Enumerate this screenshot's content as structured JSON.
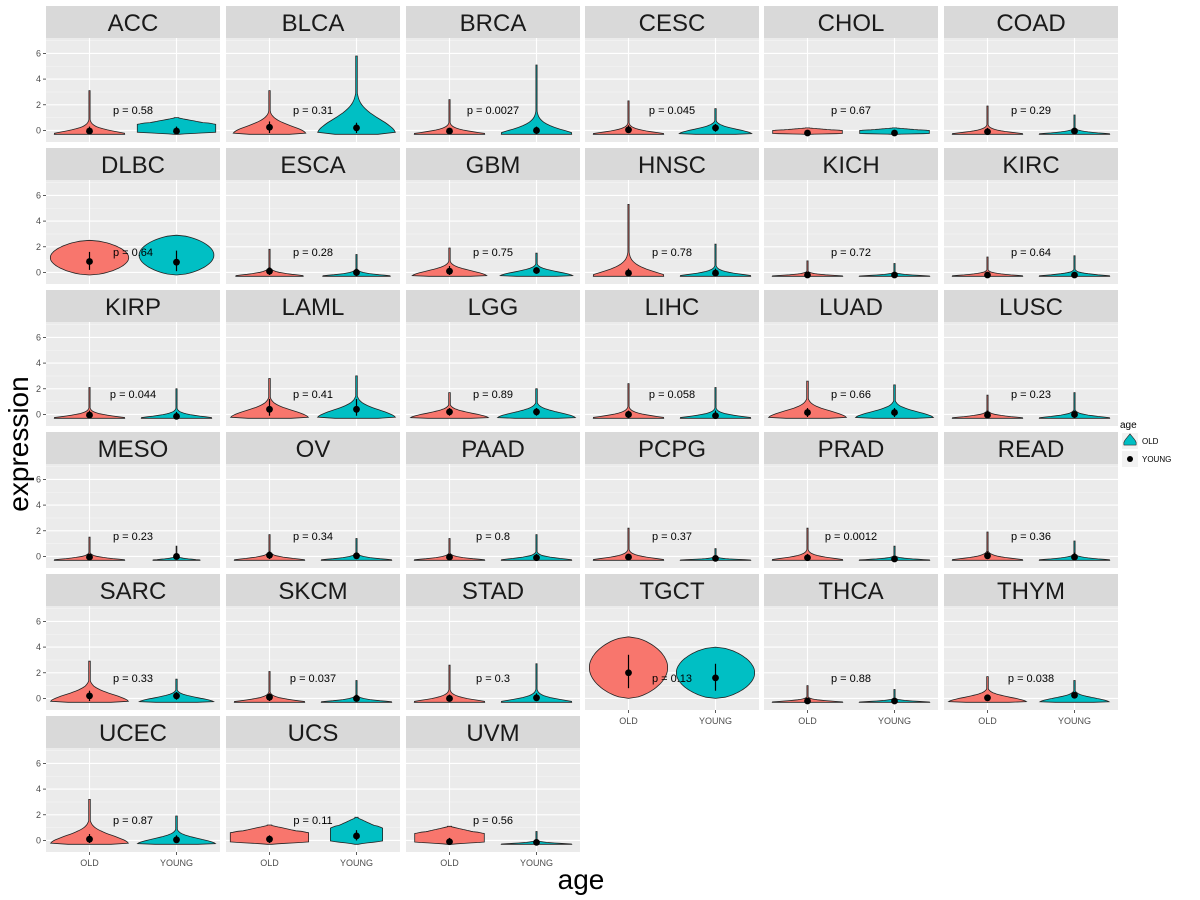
{
  "chart_data": {
    "type": "violin",
    "title": "",
    "xlabel": "age",
    "ylabel": "expression",
    "categories": [
      "OLD",
      "YOUNG"
    ],
    "ylim": [
      -0.9,
      7.2
    ],
    "yticks": [
      0,
      2,
      4,
      6
    ],
    "legend": {
      "title": "age",
      "position": "right",
      "entries": [
        {
          "name": "OLD",
          "color": "#F8766D"
        },
        {
          "name": "YOUNG",
          "color": "#00BFC4"
        }
      ]
    },
    "panels": [
      {
        "name": "ACC",
        "p": "p = 0.58",
        "old": {
          "min": -0.3,
          "max": 3.1,
          "mean": -0.05,
          "lo": -0.3,
          "hi": 0.3,
          "width": 0.45,
          "shape": "peak"
        },
        "young": {
          "min": -0.3,
          "max": 1.0,
          "mean": -0.05,
          "lo": -0.3,
          "hi": 0.3,
          "width": 0.45,
          "shape": "flat"
        }
      },
      {
        "name": "BLCA",
        "p": "p = 0.31",
        "old": {
          "min": -0.3,
          "max": 3.1,
          "mean": 0.25,
          "lo": -0.2,
          "hi": 0.7,
          "width": 0.42,
          "shape": "spread"
        },
        "young": {
          "min": -0.3,
          "max": 5.8,
          "mean": 0.2,
          "lo": -0.2,
          "hi": 0.6,
          "width": 0.45,
          "shape": "spread"
        }
      },
      {
        "name": "BRCA",
        "p": "p = 0.0027",
        "old": {
          "min": -0.3,
          "max": 2.4,
          "mean": -0.05,
          "lo": -0.3,
          "hi": 0.2,
          "width": 0.45,
          "shape": "peak"
        },
        "young": {
          "min": -0.3,
          "max": 5.1,
          "mean": 0.0,
          "lo": -0.3,
          "hi": 0.3,
          "width": 0.45,
          "shape": "peak"
        }
      },
      {
        "name": "CESC",
        "p": "p = 0.045",
        "old": {
          "min": -0.3,
          "max": 2.3,
          "mean": 0.05,
          "lo": -0.2,
          "hi": 0.4,
          "width": 0.45,
          "shape": "peak"
        },
        "young": {
          "min": -0.3,
          "max": 1.7,
          "mean": 0.2,
          "lo": -0.1,
          "hi": 0.5,
          "width": 0.42,
          "shape": "spread"
        }
      },
      {
        "name": "CHOL",
        "p": "p = 0.67",
        "old": {
          "min": -0.3,
          "max": 0.2,
          "mean": -0.2,
          "lo": -0.3,
          "hi": -0.1,
          "width": 0.4,
          "shape": "flat"
        },
        "young": {
          "min": -0.3,
          "max": 0.2,
          "mean": -0.2,
          "lo": -0.3,
          "hi": -0.1,
          "width": 0.4,
          "shape": "flat"
        }
      },
      {
        "name": "COAD",
        "p": "p = 0.29",
        "old": {
          "min": -0.3,
          "max": 1.9,
          "mean": -0.1,
          "lo": -0.3,
          "hi": 0.2,
          "width": 0.45,
          "shape": "peak"
        },
        "young": {
          "min": -0.3,
          "max": 1.2,
          "mean": -0.05,
          "lo": -0.3,
          "hi": 0.2,
          "width": 0.45,
          "shape": "peak"
        }
      },
      {
        "name": "DLBC",
        "p": "p = 0.64",
        "old": {
          "min": -0.2,
          "max": 2.5,
          "mean": 0.85,
          "lo": 0.2,
          "hi": 1.6,
          "width": 0.45,
          "shape": "broad"
        },
        "young": {
          "min": -0.2,
          "max": 2.9,
          "mean": 0.8,
          "lo": 0.1,
          "hi": 1.7,
          "width": 0.43,
          "shape": "broad"
        }
      },
      {
        "name": "ESCA",
        "p": "p = 0.28",
        "old": {
          "min": -0.3,
          "max": 1.8,
          "mean": 0.1,
          "lo": -0.2,
          "hi": 0.4,
          "width": 0.43,
          "shape": "peak"
        },
        "young": {
          "min": -0.3,
          "max": 1.4,
          "mean": 0.0,
          "lo": -0.3,
          "hi": 0.3,
          "width": 0.43,
          "shape": "peak"
        }
      },
      {
        "name": "GBM",
        "p": "p = 0.75",
        "old": {
          "min": -0.3,
          "max": 1.9,
          "mean": 0.1,
          "lo": -0.2,
          "hi": 0.5,
          "width": 0.43,
          "shape": "spread"
        },
        "young": {
          "min": -0.3,
          "max": 1.5,
          "mean": 0.15,
          "lo": -0.1,
          "hi": 0.4,
          "width": 0.42,
          "shape": "spread"
        }
      },
      {
        "name": "HNSC",
        "p": "p = 0.78",
        "old": {
          "min": -0.3,
          "max": 5.3,
          "mean": -0.05,
          "lo": -0.3,
          "hi": 0.3,
          "width": 0.45,
          "shape": "peak"
        },
        "young": {
          "min": -0.3,
          "max": 2.2,
          "mean": -0.05,
          "lo": -0.3,
          "hi": 0.3,
          "width": 0.45,
          "shape": "peak"
        }
      },
      {
        "name": "KICH",
        "p": "p = 0.72",
        "old": {
          "min": -0.3,
          "max": 0.9,
          "mean": -0.2,
          "lo": -0.3,
          "hi": 0.0,
          "width": 0.45,
          "shape": "peak"
        },
        "young": {
          "min": -0.3,
          "max": 0.7,
          "mean": -0.2,
          "lo": -0.3,
          "hi": 0.0,
          "width": 0.45,
          "shape": "peak"
        }
      },
      {
        "name": "KIRC",
        "p": "p = 0.64",
        "old": {
          "min": -0.3,
          "max": 1.2,
          "mean": -0.2,
          "lo": -0.3,
          "hi": 0.0,
          "width": 0.45,
          "shape": "peak"
        },
        "young": {
          "min": -0.3,
          "max": 1.3,
          "mean": -0.2,
          "lo": -0.3,
          "hi": 0.0,
          "width": 0.45,
          "shape": "peak"
        }
      },
      {
        "name": "KIRP",
        "p": "p = 0.044",
        "old": {
          "min": -0.3,
          "max": 2.1,
          "mean": -0.05,
          "lo": -0.3,
          "hi": 0.3,
          "width": 0.45,
          "shape": "peak"
        },
        "young": {
          "min": -0.3,
          "max": 2.0,
          "mean": -0.15,
          "lo": -0.3,
          "hi": 0.2,
          "width": 0.45,
          "shape": "peak"
        }
      },
      {
        "name": "LAML",
        "p": "p = 0.41",
        "old": {
          "min": -0.3,
          "max": 2.8,
          "mean": 0.4,
          "lo": -0.1,
          "hi": 1.2,
          "width": 0.45,
          "shape": "spread"
        },
        "young": {
          "min": -0.3,
          "max": 3.0,
          "mean": 0.4,
          "lo": -0.1,
          "hi": 1.2,
          "width": 0.45,
          "shape": "spread"
        }
      },
      {
        "name": "LGG",
        "p": "p = 0.89",
        "old": {
          "min": -0.3,
          "max": 1.7,
          "mean": 0.2,
          "lo": -0.1,
          "hi": 0.5,
          "width": 0.45,
          "shape": "spread"
        },
        "young": {
          "min": -0.3,
          "max": 2.0,
          "mean": 0.2,
          "lo": -0.1,
          "hi": 0.5,
          "width": 0.45,
          "shape": "spread"
        }
      },
      {
        "name": "LIHC",
        "p": "p = 0.058",
        "old": {
          "min": -0.3,
          "max": 2.4,
          "mean": 0.0,
          "lo": -0.3,
          "hi": 0.3,
          "width": 0.45,
          "shape": "peak"
        },
        "young": {
          "min": -0.3,
          "max": 2.1,
          "mean": -0.1,
          "lo": -0.3,
          "hi": 0.3,
          "width": 0.45,
          "shape": "peak"
        }
      },
      {
        "name": "LUAD",
        "p": "p = 0.66",
        "old": {
          "min": -0.3,
          "max": 2.6,
          "mean": 0.15,
          "lo": -0.2,
          "hi": 0.5,
          "width": 0.45,
          "shape": "spread"
        },
        "young": {
          "min": -0.3,
          "max": 2.3,
          "mean": 0.15,
          "lo": -0.2,
          "hi": 0.5,
          "width": 0.45,
          "shape": "spread"
        }
      },
      {
        "name": "LUSC",
        "p": "p = 0.23",
        "old": {
          "min": -0.3,
          "max": 1.5,
          "mean": -0.05,
          "lo": -0.3,
          "hi": 0.3,
          "width": 0.45,
          "shape": "peak"
        },
        "young": {
          "min": -0.3,
          "max": 1.7,
          "mean": 0.0,
          "lo": -0.3,
          "hi": 0.3,
          "width": 0.45,
          "shape": "peak"
        }
      },
      {
        "name": "MESO",
        "p": "p = 0.23",
        "old": {
          "min": -0.3,
          "max": 1.5,
          "mean": -0.05,
          "lo": -0.3,
          "hi": 0.2,
          "width": 0.45,
          "shape": "peak"
        },
        "young": {
          "min": -0.3,
          "max": 0.8,
          "mean": 0.0,
          "lo": -0.2,
          "hi": 0.2,
          "width": 0.3,
          "shape": "peak"
        }
      },
      {
        "name": "OV",
        "p": "p = 0.34",
        "old": {
          "min": -0.3,
          "max": 1.7,
          "mean": 0.1,
          "lo": -0.2,
          "hi": 0.4,
          "width": 0.45,
          "shape": "peak"
        },
        "young": {
          "min": -0.3,
          "max": 1.4,
          "mean": 0.05,
          "lo": -0.2,
          "hi": 0.3,
          "width": 0.45,
          "shape": "peak"
        }
      },
      {
        "name": "PAAD",
        "p": "p = 0.8",
        "old": {
          "min": -0.3,
          "max": 1.4,
          "mean": -0.05,
          "lo": -0.3,
          "hi": 0.2,
          "width": 0.45,
          "shape": "peak"
        },
        "young": {
          "min": -0.3,
          "max": 1.7,
          "mean": -0.1,
          "lo": -0.3,
          "hi": 0.2,
          "width": 0.45,
          "shape": "peak"
        }
      },
      {
        "name": "PCPG",
        "p": "p = 0.37",
        "old": {
          "min": -0.3,
          "max": 2.2,
          "mean": -0.05,
          "lo": -0.3,
          "hi": 0.2,
          "width": 0.45,
          "shape": "peak"
        },
        "young": {
          "min": -0.3,
          "max": 0.6,
          "mean": -0.15,
          "lo": -0.3,
          "hi": 0.0,
          "width": 0.45,
          "shape": "peak"
        }
      },
      {
        "name": "PRAD",
        "p": "p = 0.0012",
        "old": {
          "min": -0.3,
          "max": 2.2,
          "mean": -0.1,
          "lo": -0.3,
          "hi": 0.2,
          "width": 0.45,
          "shape": "peak"
        },
        "young": {
          "min": -0.3,
          "max": 0.8,
          "mean": -0.2,
          "lo": -0.3,
          "hi": 0.0,
          "width": 0.45,
          "shape": "peak"
        }
      },
      {
        "name": "READ",
        "p": "p = 0.36",
        "old": {
          "min": -0.3,
          "max": 1.9,
          "mean": 0.05,
          "lo": -0.2,
          "hi": 0.4,
          "width": 0.45,
          "shape": "peak"
        },
        "young": {
          "min": -0.3,
          "max": 1.2,
          "mean": -0.05,
          "lo": -0.2,
          "hi": 0.3,
          "width": 0.45,
          "shape": "peak"
        }
      },
      {
        "name": "SARC",
        "p": "p = 0.33",
        "old": {
          "min": -0.3,
          "max": 2.9,
          "mean": 0.2,
          "lo": -0.2,
          "hi": 0.6,
          "width": 0.45,
          "shape": "spread"
        },
        "young": {
          "min": -0.3,
          "max": 1.5,
          "mean": 0.2,
          "lo": -0.1,
          "hi": 0.5,
          "width": 0.43,
          "shape": "spread"
        }
      },
      {
        "name": "SKCM",
        "p": "p = 0.037",
        "old": {
          "min": -0.3,
          "max": 2.1,
          "mean": 0.1,
          "lo": -0.2,
          "hi": 0.4,
          "width": 0.45,
          "shape": "peak"
        },
        "young": {
          "min": -0.3,
          "max": 1.4,
          "mean": 0.0,
          "lo": -0.2,
          "hi": 0.3,
          "width": 0.45,
          "shape": "peak"
        }
      },
      {
        "name": "STAD",
        "p": "p = 0.3",
        "old": {
          "min": -0.3,
          "max": 2.6,
          "mean": 0.0,
          "lo": -0.2,
          "hi": 0.3,
          "width": 0.45,
          "shape": "peak"
        },
        "young": {
          "min": -0.3,
          "max": 2.7,
          "mean": 0.05,
          "lo": -0.2,
          "hi": 0.4,
          "width": 0.45,
          "shape": "peak"
        }
      },
      {
        "name": "TGCT",
        "p": "p = 0.13",
        "old": {
          "min": 0.0,
          "max": 4.8,
          "mean": 2.0,
          "lo": 0.8,
          "hi": 3.4,
          "width": 0.45,
          "shape": "broad"
        },
        "young": {
          "min": 0.0,
          "max": 4.0,
          "mean": 1.6,
          "lo": 0.6,
          "hi": 2.7,
          "width": 0.45,
          "shape": "broad"
        }
      },
      {
        "name": "THCA",
        "p": "p = 0.88",
        "old": {
          "min": -0.3,
          "max": 1.0,
          "mean": -0.2,
          "lo": -0.3,
          "hi": 0.0,
          "width": 0.45,
          "shape": "peak"
        },
        "young": {
          "min": -0.3,
          "max": 0.7,
          "mean": -0.2,
          "lo": -0.3,
          "hi": 0.0,
          "width": 0.45,
          "shape": "peak"
        }
      },
      {
        "name": "THYM",
        "p": "p = 0.038",
        "old": {
          "min": -0.3,
          "max": 1.7,
          "mean": 0.05,
          "lo": -0.2,
          "hi": 0.3,
          "width": 0.45,
          "shape": "spread"
        },
        "young": {
          "min": -0.3,
          "max": 1.4,
          "mean": 0.25,
          "lo": 0.0,
          "hi": 0.5,
          "width": 0.4,
          "shape": "spread"
        }
      },
      {
        "name": "UCEC",
        "p": "p = 0.87",
        "old": {
          "min": -0.3,
          "max": 3.2,
          "mean": 0.1,
          "lo": -0.2,
          "hi": 0.5,
          "width": 0.45,
          "shape": "spread"
        },
        "young": {
          "min": -0.3,
          "max": 1.9,
          "mean": 0.05,
          "lo": -0.2,
          "hi": 0.4,
          "width": 0.45,
          "shape": "spread"
        }
      },
      {
        "name": "UCS",
        "p": "p = 0.11",
        "old": {
          "min": -0.3,
          "max": 1.2,
          "mean": 0.1,
          "lo": -0.2,
          "hi": 0.4,
          "width": 0.45,
          "shape": "flat"
        },
        "young": {
          "min": -0.3,
          "max": 1.8,
          "mean": 0.35,
          "lo": 0.0,
          "hi": 0.8,
          "width": 0.3,
          "shape": "flat"
        }
      },
      {
        "name": "UVM",
        "p": "p = 0.56",
        "old": {
          "min": -0.3,
          "max": 1.1,
          "mean": -0.1,
          "lo": -0.3,
          "hi": 0.2,
          "width": 0.4,
          "shape": "flat"
        },
        "young": {
          "min": -0.3,
          "max": 0.7,
          "mean": -0.15,
          "lo": -0.3,
          "hi": 0.1,
          "width": 0.45,
          "shape": "peak"
        }
      }
    ]
  }
}
